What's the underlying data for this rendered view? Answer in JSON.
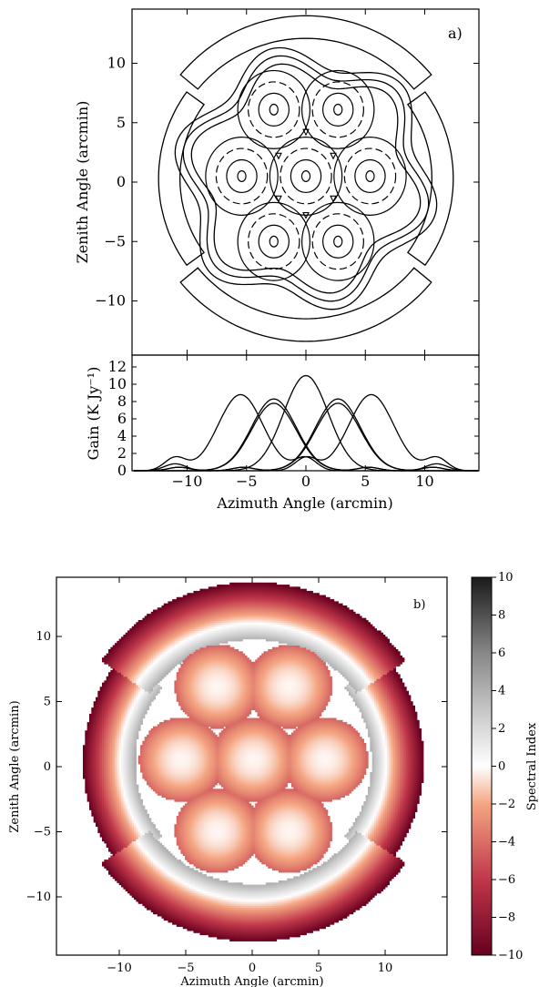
{
  "figure": {
    "panel_a": {
      "label": "a)",
      "ylabel": "Zenith Angle (arcmin)",
      "xlim": [
        -14.5,
        14.5
      ],
      "ylim": [
        -14.5,
        14.5
      ],
      "yticks": [
        10,
        5,
        0,
        -5,
        -10
      ],
      "ytick_labels": [
        "10",
        "5",
        "0",
        "−5",
        "−10"
      ]
    },
    "panel_a_profile": {
      "ylabel": "Gain (K Jy⁻¹)",
      "xlabel": "Azimuth Angle (arcmin)",
      "ylim": [
        0,
        13
      ],
      "yticks": [
        0,
        2,
        4,
        6,
        8,
        10,
        12
      ],
      "ytick_labels": [
        "0",
        "2",
        "4",
        "6",
        "8",
        "10",
        "12"
      ],
      "xticks": [
        -10,
        -5,
        0,
        5,
        10
      ],
      "xtick_labels": [
        "−10",
        "−5",
        "0",
        "5",
        "10"
      ]
    },
    "panel_b": {
      "label": "b)",
      "ylabel": "Zenith Angle (arcmin)",
      "xlabel": "Azimuth Angle (arcmin)",
      "xticks": [
        -10,
        -5,
        0,
        5,
        10
      ],
      "xtick_labels": [
        "−10",
        "−5",
        "0",
        "5",
        "10"
      ],
      "yticks": [
        10,
        5,
        0,
        -5,
        -10
      ],
      "ytick_labels": [
        "10",
        "5",
        "0",
        "−5",
        "−10"
      ],
      "colorbar_label": "Spectral Index",
      "colorbar_ticks": [
        10,
        8,
        6,
        4,
        2,
        0,
        -2,
        -4,
        -6,
        -8,
        -10
      ],
      "colorbar_tick_labels": [
        "10",
        "8",
        "6",
        "4",
        "2",
        "0",
        "−2",
        "−4",
        "−6",
        "−8",
        "−10"
      ],
      "colorbar_range": [
        -10,
        10
      ],
      "colormap": {
        "low": "#67001f",
        "mid_low": "#f4a582",
        "mid": "#ffffff",
        "mid_high": "#bababa",
        "high": "#1a1a1a"
      }
    }
  },
  "chart_data": [
    {
      "type": "contour",
      "panel": "a",
      "description_units": "arcmin",
      "beams": [
        {
          "x": 0.0,
          "y": 0.5,
          "peak": 11.0
        },
        {
          "x": -2.7,
          "y": 6.1,
          "peak": 8.4
        },
        {
          "x": 2.7,
          "y": 6.1,
          "peak": 8.4
        },
        {
          "x": -5.4,
          "y": 0.5,
          "peak": 8.8
        },
        {
          "x": 5.4,
          "y": 0.5,
          "peak": 8.8
        },
        {
          "x": -2.7,
          "y": -5.0,
          "peak": 7.8
        },
        {
          "x": 2.7,
          "y": -5.0,
          "peak": 7.8
        }
      ],
      "xlim": [
        -14.5,
        14.5
      ],
      "ylim": [
        -14.5,
        14.5
      ]
    },
    {
      "type": "line",
      "panel": "a-profile",
      "xlabel": "Azimuth Angle (arcmin)",
      "ylabel": "Gain (K Jy⁻¹)",
      "xlim": [
        -14.5,
        14.5
      ],
      "ylim": [
        0,
        13
      ],
      "series": [
        {
          "center": 0.0,
          "peak": 11.0,
          "sidelobe_offset": 11.0,
          "sidelobe_peak": 0.8
        },
        {
          "center": -5.5,
          "peak": 8.8,
          "sidelobe_offset": 5.5,
          "sidelobe_peak": 1.5
        },
        {
          "center": 5.5,
          "peak": 8.8,
          "sidelobe_offset": 5.5,
          "sidelobe_peak": 1.5
        },
        {
          "center": -2.7,
          "peak": 8.3,
          "sidelobe_offset": 8.0,
          "sidelobe_peak": 0.4
        },
        {
          "center": 2.7,
          "peak": 8.3,
          "sidelobe_offset": 8.0,
          "sidelobe_peak": 0.4
        },
        {
          "center": -2.7,
          "peak": 7.8,
          "sidelobe_offset": 8.0,
          "sidelobe_peak": 0.4
        },
        {
          "center": 2.7,
          "peak": 7.8,
          "sidelobe_offset": 8.0,
          "sidelobe_peak": 0.4
        }
      ]
    },
    {
      "type": "heatmap",
      "panel": "b",
      "xlabel": "Azimuth Angle (arcmin)",
      "ylabel": "Zenith Angle (arcmin)",
      "xlim": [
        -14.5,
        14.5
      ],
      "ylim": [
        -14.5,
        14.5
      ],
      "value_range": [
        -10,
        10
      ],
      "colorbar_label": "Spectral Index"
    }
  ]
}
